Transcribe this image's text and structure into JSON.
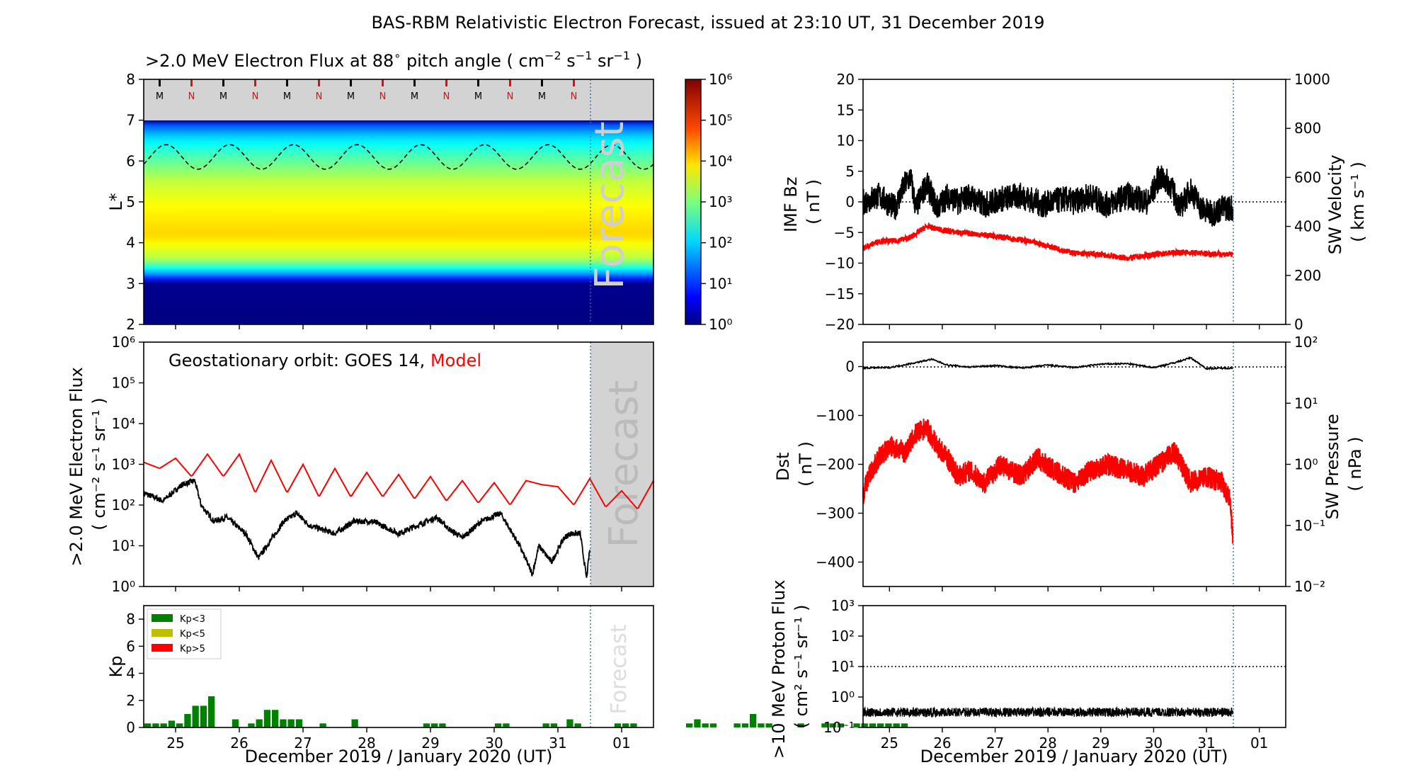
{
  "title": "BAS-RBM Relativistic Electron Forecast, issued at 23:10 UT, 31 December 2019",
  "colors": {
    "observed": "#000000",
    "model": "#ff0000",
    "kp_low": "#008000",
    "kp_mid": "#bfbf00",
    "kp_high": "#ff0000",
    "forecast_shade": "#d3d3d3",
    "now_line": "#1f77b4"
  },
  "x_axis": {
    "label": "December 2019 / January 2020 (UT)",
    "range_days": [
      "2019-12-24 12:00",
      "2020-01-01 12:00"
    ],
    "tick_labels": [
      "25",
      "26",
      "27",
      "28",
      "29",
      "30",
      "31",
      "01"
    ],
    "now": "2019-12-31 12:00"
  },
  "forecast_label": "Forecast",
  "chart_data": [
    {
      "id": "lstar-flux",
      "type": "heatmap",
      "title": ">2.0 MeV Electron Flux at 88° pitch angle ( cm⁻² s⁻¹ sr⁻¹ )",
      "title_parts": {
        "a": ">2.0 MeV Electron Flux at 88",
        "deg": "∘",
        "b": " pitch angle ( cm",
        "e1": "−2",
        "b2": " s",
        "e2": "−1",
        "b3": " sr",
        "e3": "−1",
        "b4": " )"
      },
      "ylabel": "L*",
      "ylim": [
        2,
        8
      ],
      "y_ticks": [
        "2",
        "3",
        "4",
        "5",
        "6",
        "7",
        "8"
      ],
      "mn_markers": [
        "M",
        "N",
        "M",
        "N",
        "M",
        "N",
        "M",
        "N",
        "M",
        "N",
        "M",
        "N",
        "M",
        "N"
      ],
      "colorbar_ticks": [
        "10⁰",
        "10¹",
        "10²",
        "10³",
        "10⁴",
        "10⁵",
        "10⁶"
      ],
      "colorbar_range_log10": [
        0,
        6
      ],
      "profile_log10_by_L": [
        [
          2.0,
          0.0
        ],
        [
          3.0,
          0.1
        ],
        [
          3.1,
          0.8
        ],
        [
          3.3,
          2.0
        ],
        [
          3.6,
          3.3
        ],
        [
          4.2,
          4.0
        ],
        [
          4.8,
          3.8
        ],
        [
          5.5,
          3.4
        ],
        [
          6.2,
          2.6
        ],
        [
          6.6,
          2.0
        ],
        [
          6.9,
          1.2
        ],
        [
          7.0,
          0.0
        ]
      ],
      "geo_orbit_L": {
        "mean": 6.1,
        "amplitude": 0.3,
        "period_days": 1
      }
    },
    {
      "id": "geo-electron",
      "type": "line",
      "ylabel": ">2.0 MeV Electron Flux",
      "ylabel_units": "( cm⁻² s⁻¹ sr⁻¹ )",
      "ylim_log10": [
        0,
        6
      ],
      "y_ticks": [
        "10⁰",
        "10¹",
        "10²",
        "10³",
        "10⁴",
        "10⁵",
        "10⁶"
      ],
      "legend": {
        "prefix": "Geostationary orbit:   GOES 14,",
        "model": "Model"
      },
      "series": [
        {
          "name": "GOES 14",
          "color": "#000000",
          "x_days": [
            0,
            0.3,
            0.6,
            0.8,
            0.9,
            1.1,
            1.3,
            1.6,
            1.8,
            2.2,
            2.4,
            2.6,
            3.0,
            3.3,
            3.6,
            4.0,
            4.3,
            4.6,
            4.8,
            5.0,
            5.3,
            5.6,
            5.9,
            6.1,
            6.2,
            6.4,
            6.6,
            6.7,
            6.85,
            6.95,
            7.0
          ],
          "log10": [
            2.3,
            2.1,
            2.5,
            2.6,
            2.0,
            1.6,
            1.7,
            1.3,
            0.7,
            1.6,
            1.8,
            1.5,
            1.3,
            1.6,
            1.6,
            1.3,
            1.5,
            1.7,
            1.4,
            1.2,
            1.6,
            1.8,
            1.0,
            0.3,
            1.0,
            0.6,
            1.2,
            1.3,
            1.3,
            0.2,
            0.9
          ]
        },
        {
          "name": "Model",
          "color": "#ff0000",
          "x_days": [
            0,
            0.25,
            0.5,
            0.75,
            1.0,
            1.25,
            1.5,
            1.75,
            2.0,
            2.25,
            2.5,
            2.75,
            3.0,
            3.25,
            3.5,
            3.75,
            4.0,
            4.25,
            4.5,
            4.75,
            5.0,
            5.25,
            5.5,
            5.75,
            6.0,
            6.25,
            6.5,
            6.75,
            7.0,
            7.25,
            7.5,
            7.75,
            8.0
          ],
          "log10": [
            3.05,
            2.9,
            3.15,
            2.7,
            3.25,
            2.7,
            3.25,
            2.3,
            3.1,
            2.3,
            3.0,
            2.2,
            2.9,
            2.2,
            2.8,
            2.2,
            2.75,
            2.15,
            2.7,
            2.1,
            2.6,
            2.05,
            2.55,
            2.0,
            2.6,
            2.5,
            2.45,
            2.0,
            2.65,
            1.95,
            2.35,
            1.9,
            2.6
          ]
        }
      ]
    },
    {
      "id": "kp",
      "type": "bar",
      "ylabel": "Kp",
      "ylim": [
        0,
        9
      ],
      "y_ticks": [
        "0",
        "2",
        "4",
        "6",
        "8"
      ],
      "legend": [
        "Kp<3",
        "Kp<5",
        "Kp>5"
      ],
      "bin_hours": 3,
      "values": [
        0.3,
        0.3,
        0.3,
        0.5,
        0.3,
        1.0,
        1.6,
        1.6,
        2.3,
        0,
        0,
        0.6,
        0,
        0.3,
        0.6,
        1.3,
        1.3,
        0.6,
        0.6,
        0.6,
        0,
        0,
        0.3,
        0,
        0,
        0,
        0.6,
        0,
        0,
        0,
        0,
        0,
        0,
        0,
        0,
        0.3,
        0.3,
        0.3,
        0,
        0,
        0,
        0,
        0,
        0,
        0.3,
        0.3,
        0,
        0,
        0,
        0,
        0.3,
        0.3,
        0,
        0.6,
        0.3,
        0,
        0,
        0,
        0,
        0.3,
        0.3,
        0.3,
        0,
        0,
        0,
        0,
        0,
        0,
        0.3,
        0.6,
        0.3,
        0.3,
        0,
        0,
        0.3,
        0.3,
        1.0,
        0.3,
        0.3,
        0,
        0,
        0,
        0.3,
        0,
        0,
        0.3,
        0.3,
        0.3,
        0,
        0.3,
        0.3,
        0.3,
        0.3,
        0.3,
        0.3,
        0.3
      ],
      "forecast_start_bin": 56
    },
    {
      "id": "imf-swv",
      "type": "line",
      "ylabel": "IMF Bz",
      "ylabel_units": "( nT )",
      "ylim": [
        -20,
        20
      ],
      "y_ticks": [
        "20",
        "15",
        "10",
        "5",
        "0",
        "−5",
        "−10",
        "−15",
        "−20"
      ],
      "y2label": "SW Velocity",
      "y2label_units": "( km s⁻¹ )",
      "y2lim": [
        0,
        1000
      ],
      "y2_ticks": [
        "1000",
        "800",
        "600",
        "400",
        "200",
        "0"
      ],
      "series": [
        {
          "name": "IMF Bz",
          "color": "#000000",
          "x_days": [
            0,
            0.3,
            0.6,
            0.8,
            0.9,
            1.0,
            1.1,
            1.2,
            1.4,
            1.6,
            1.8,
            2.0,
            2.3,
            2.6,
            3.0,
            3.4,
            3.8,
            4.0,
            4.3,
            4.6,
            5.0,
            5.4,
            5.6,
            5.8,
            6.0,
            6.2,
            6.4,
            6.6,
            6.8,
            7.0
          ],
          "values": [
            0,
            1,
            -1,
            3,
            4,
            -1,
            1,
            3,
            -1,
            1,
            0,
            1,
            -0.5,
            0.5,
            1,
            -0.5,
            0.5,
            0,
            1,
            -0.5,
            1,
            0,
            4,
            3,
            -1,
            2,
            -1,
            -2,
            -1,
            -1
          ]
        },
        {
          "name": "SW Velocity",
          "color": "#ff0000",
          "x_days": [
            0,
            0.3,
            0.6,
            0.9,
            1.2,
            1.5,
            1.8,
            2.1,
            2.5,
            3.0,
            3.5,
            4.0,
            4.5,
            5.0,
            5.5,
            6.0,
            6.5,
            7.0
          ],
          "values": [
            310,
            340,
            340,
            355,
            400,
            385,
            375,
            370,
            360,
            345,
            320,
            290,
            285,
            270,
            285,
            295,
            290,
            285
          ]
        }
      ]
    },
    {
      "id": "dst-swp",
      "type": "line",
      "ylabel": "Dst",
      "ylabel_units": "( nT )",
      "ylim": [
        -450,
        50
      ],
      "y_ticks": [
        "0",
        "−100",
        "−200",
        "−300",
        "−400"
      ],
      "y2label": "SW Pressure",
      "y2label_units": "( nPa )",
      "y2lim_log10": [
        -2,
        2
      ],
      "y2_ticks": [
        "10²",
        "10¹",
        "10⁰",
        "10⁻¹",
        "10⁻²"
      ],
      "series": [
        {
          "name": "Dst",
          "color": "#000000",
          "x_days": [
            0,
            0.5,
            1.0,
            1.3,
            1.6,
            2.0,
            2.5,
            3.0,
            3.5,
            4.0,
            4.5,
            5.0,
            5.5,
            5.9,
            6.2,
            6.5,
            7.0
          ],
          "values": [
            -3,
            -2,
            8,
            15,
            3,
            -1,
            2,
            -3,
            3,
            -2,
            5,
            6,
            -2,
            8,
            18,
            -4,
            -3
          ]
        },
        {
          "name": "SW Pressure",
          "color": "#ff0000",
          "x_days": [
            0,
            0.1,
            0.3,
            0.5,
            0.8,
            1.0,
            1.2,
            1.4,
            1.6,
            1.8,
            2.0,
            2.3,
            2.6,
            3.0,
            3.3,
            3.6,
            4.0,
            4.3,
            4.6,
            5.0,
            5.3,
            5.6,
            5.9,
            6.2,
            6.5,
            6.8,
            6.95,
            7.0
          ],
          "log10": [
            -0.5,
            -0.2,
            0.1,
            0.3,
            0.2,
            0.5,
            0.6,
            0.3,
            0.1,
            -0.2,
            -0.1,
            -0.3,
            0.0,
            -0.2,
            0.1,
            -0.1,
            -0.3,
            -0.1,
            0.0,
            -0.1,
            -0.2,
            0.0,
            0.2,
            -0.3,
            -0.2,
            -0.3,
            -0.6,
            -1.3
          ]
        }
      ]
    },
    {
      "id": "proton",
      "type": "line",
      "ylabel": ">10 MeV Proton Flux",
      "ylabel_units": "( cm² s⁻¹ sr⁻¹ )",
      "ylim_log10": [
        -1,
        3
      ],
      "y_ticks": [
        "10³",
        "10²",
        "10¹",
        "10⁰",
        "10⁻¹"
      ],
      "threshold_log10": 1,
      "series": [
        {
          "name": ">10 MeV Proton Flux",
          "color": "#000000",
          "mean_log10": -0.5,
          "jitter_log10": 0.15
        }
      ]
    }
  ]
}
